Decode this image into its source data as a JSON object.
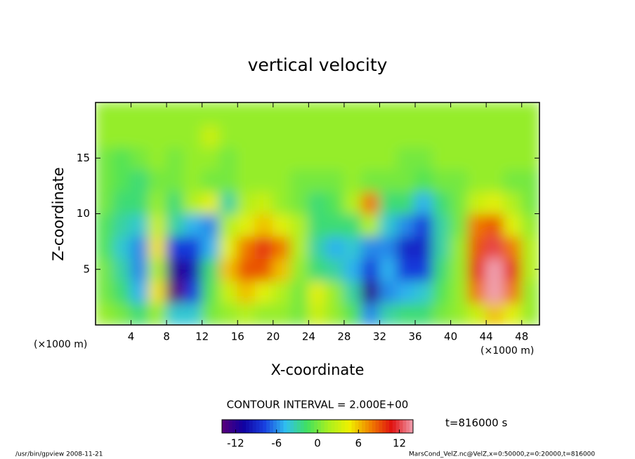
{
  "chart_data": {
    "type": "contour",
    "title": "vertical velocity",
    "x_label": "X-coordinate",
    "y_label": "Z-coordinate",
    "x_unit_label": "(×1000 m)",
    "xlim": [
      0,
      50
    ],
    "xticks": [
      4,
      8,
      12,
      16,
      20,
      24,
      28,
      32,
      36,
      40,
      44,
      48
    ],
    "ylim": [
      0,
      20
    ],
    "yticks": [
      5,
      10,
      15
    ],
    "x": [
      1,
      3,
      5,
      7,
      9,
      11,
      13,
      15,
      17,
      19,
      21,
      23,
      25,
      27,
      29,
      31,
      33,
      35,
      37,
      39,
      41,
      43,
      45,
      47,
      49
    ],
    "y": [
      1,
      3,
      5,
      7,
      9,
      11,
      13,
      15,
      17,
      19
    ],
    "z": [
      [
        1,
        0,
        -2,
        1,
        -4,
        -4,
        0,
        1,
        2,
        1,
        1,
        0,
        3,
        1,
        -1,
        -6,
        -3,
        -2,
        -2,
        0,
        1,
        3,
        6,
        4,
        1
      ],
      [
        0,
        -2,
        -5,
        5,
        -14,
        -8,
        -1,
        3,
        6,
        4,
        2,
        0,
        4,
        1,
        -3,
        -12,
        -6,
        -5,
        -4,
        -1,
        1,
        8,
        14,
        8,
        1
      ],
      [
        0,
        -3,
        -6,
        2,
        -12,
        -10,
        -2,
        6,
        9,
        9,
        6,
        1,
        -2,
        -3,
        -5,
        -8,
        -5,
        -8,
        -8,
        -2,
        1,
        10,
        14,
        10,
        2
      ],
      [
        -1,
        -4,
        -6,
        5,
        -8,
        -8,
        -5,
        4,
        8,
        10,
        8,
        2,
        -3,
        -5,
        -4,
        -6,
        -6,
        -9,
        -9,
        -3,
        1,
        9,
        12,
        8,
        2
      ],
      [
        -1,
        -3,
        -4,
        3,
        -3,
        -5,
        -6,
        2,
        4,
        6,
        4,
        2,
        -2,
        -2,
        -2,
        2,
        -4,
        -6,
        -8,
        -3,
        0,
        8,
        9,
        4,
        1
      ],
      [
        0,
        -2,
        -2,
        1,
        -2,
        2,
        4,
        -3,
        2,
        3,
        1,
        0,
        -2,
        -1,
        2,
        8,
        -2,
        -2,
        -5,
        -2,
        0,
        3,
        4,
        2,
        0
      ],
      [
        0,
        -1,
        -2,
        0,
        0,
        1,
        0,
        0,
        1,
        1,
        1,
        0,
        0,
        0,
        1,
        0,
        0,
        0,
        -1,
        0,
        0,
        1,
        1,
        0,
        0
      ],
      [
        0,
        -1,
        0,
        1,
        0,
        1,
        1,
        0,
        1,
        1,
        1,
        1,
        1,
        1,
        1,
        1,
        1,
        0,
        0,
        1,
        1,
        1,
        1,
        1,
        1
      ],
      [
        1,
        1,
        1,
        1,
        1,
        1,
        3,
        1,
        1,
        1,
        1,
        1,
        1,
        1,
        1,
        1,
        1,
        1,
        1,
        1,
        1,
        1,
        1,
        1,
        1
      ],
      [
        1,
        1,
        1,
        1,
        1,
        1,
        1,
        1,
        1,
        1,
        1,
        1,
        1,
        1,
        1,
        1,
        1,
        1,
        1,
        1,
        1,
        1,
        1,
        1,
        1
      ]
    ],
    "clim": [
      -14,
      14
    ],
    "cticks": [
      -12,
      -6,
      0,
      6,
      12
    ],
    "colormap": [
      "#5a007a",
      "#1000a0",
      "#1840e0",
      "#30c0f0",
      "#40e060",
      "#a8f020",
      "#f0f000",
      "#f08000",
      "#e01010",
      "#f0a0b0"
    ],
    "contour_interval_label": "CONTOUR INTERVAL = 2.000E+00",
    "time_label": "t=816000 s",
    "footer_left": "/usr/bin/gpview  2008-11-21",
    "footer_right": "MarsCond_VelZ.nc@VelZ,x=0:50000,z=0:20000,t=816000"
  }
}
